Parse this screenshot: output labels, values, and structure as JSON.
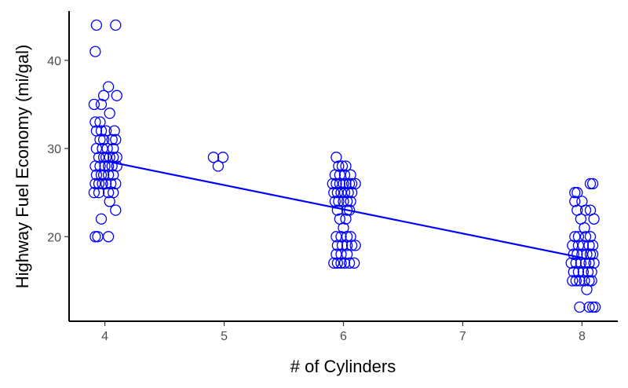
{
  "chart_data": {
    "type": "scatter",
    "title": "",
    "xlabel": "# of Cylinders",
    "ylabel": "Highway Fuel Economy (mi/gal)",
    "xlim": [
      3.7,
      8.3
    ],
    "ylim": [
      10.4,
      45.6
    ],
    "x_ticks": [
      4,
      5,
      6,
      7,
      8
    ],
    "y_ticks": [
      20,
      30,
      40
    ],
    "grid": false,
    "legend": "none",
    "point_color": "#0000ff",
    "line_color": "#0000ff",
    "points": [
      [
        3.93,
        44
      ],
      [
        4.09,
        44
      ],
      [
        3.92,
        41
      ],
      [
        4.03,
        37
      ],
      [
        3.99,
        36
      ],
      [
        4.1,
        36
      ],
      [
        3.91,
        35
      ],
      [
        3.97,
        35
      ],
      [
        4.04,
        34
      ],
      [
        3.92,
        33
      ],
      [
        3.96,
        33
      ],
      [
        3.93,
        32
      ],
      [
        3.97,
        32
      ],
      [
        4.01,
        32
      ],
      [
        4.08,
        32
      ],
      [
        3.96,
        31
      ],
      [
        3.99,
        31
      ],
      [
        4.06,
        31
      ],
      [
        4.09,
        31
      ],
      [
        3.93,
        30
      ],
      [
        3.98,
        30
      ],
      [
        4.02,
        30
      ],
      [
        4.07,
        30
      ],
      [
        3.95,
        29
      ],
      [
        3.99,
        29
      ],
      [
        4.01,
        29
      ],
      [
        4.04,
        29
      ],
      [
        4.07,
        29
      ],
      [
        4.1,
        29
      ],
      [
        3.92,
        28
      ],
      [
        3.96,
        28
      ],
      [
        4.0,
        28
      ],
      [
        4.03,
        28
      ],
      [
        4.06,
        28
      ],
      [
        4.1,
        28
      ],
      [
        3.93,
        27
      ],
      [
        3.97,
        27
      ],
      [
        3.99,
        27
      ],
      [
        4.03,
        27
      ],
      [
        4.07,
        27
      ],
      [
        3.92,
        26
      ],
      [
        3.95,
        26
      ],
      [
        3.98,
        26
      ],
      [
        4.01,
        26
      ],
      [
        4.05,
        26
      ],
      [
        4.09,
        26
      ],
      [
        3.91,
        25
      ],
      [
        3.95,
        25
      ],
      [
        4.03,
        25
      ],
      [
        4.07,
        25
      ],
      [
        4.04,
        24
      ],
      [
        4.09,
        23
      ],
      [
        3.97,
        22
      ],
      [
        3.92,
        20
      ],
      [
        3.94,
        20
      ],
      [
        4.03,
        20
      ],
      [
        4.91,
        29
      ],
      [
        4.99,
        29
      ],
      [
        4.95,
        28
      ],
      [
        5.94,
        29
      ],
      [
        5.96,
        28
      ],
      [
        5.99,
        28
      ],
      [
        6.02,
        28
      ],
      [
        5.93,
        27
      ],
      [
        5.97,
        27
      ],
      [
        6.01,
        27
      ],
      [
        6.06,
        27
      ],
      [
        5.91,
        26
      ],
      [
        5.94,
        26
      ],
      [
        5.97,
        26
      ],
      [
        6.0,
        26
      ],
      [
        6.02,
        26
      ],
      [
        6.05,
        26
      ],
      [
        6.07,
        26
      ],
      [
        6.1,
        26
      ],
      [
        5.92,
        25
      ],
      [
        5.95,
        25
      ],
      [
        5.98,
        25
      ],
      [
        6.01,
        25
      ],
      [
        6.04,
        25
      ],
      [
        6.07,
        25
      ],
      [
        5.93,
        24
      ],
      [
        5.96,
        24
      ],
      [
        6.0,
        24
      ],
      [
        6.03,
        24
      ],
      [
        6.06,
        24
      ],
      [
        5.95,
        23
      ],
      [
        6.03,
        23
      ],
      [
        6.05,
        23
      ],
      [
        5.97,
        22
      ],
      [
        6.02,
        22
      ],
      [
        6.0,
        21
      ],
      [
        5.98,
        20
      ],
      [
        5.94,
        20
      ],
      [
        6.03,
        20
      ],
      [
        6.06,
        20
      ],
      [
        5.95,
        19
      ],
      [
        5.99,
        19
      ],
      [
        6.03,
        19
      ],
      [
        6.07,
        19
      ],
      [
        6.1,
        19
      ],
      [
        5.94,
        18
      ],
      [
        5.98,
        18
      ],
      [
        6.03,
        18
      ],
      [
        5.92,
        17
      ],
      [
        5.95,
        17
      ],
      [
        5.98,
        17
      ],
      [
        6.01,
        17
      ],
      [
        6.05,
        17
      ],
      [
        6.09,
        17
      ],
      [
        7.94,
        25
      ],
      [
        7.96,
        25
      ],
      [
        8.07,
        26
      ],
      [
        8.09,
        26
      ],
      [
        7.94,
        24
      ],
      [
        8.0,
        24
      ],
      [
        7.96,
        23
      ],
      [
        8.03,
        23
      ],
      [
        8.07,
        23
      ],
      [
        7.99,
        22
      ],
      [
        8.1,
        22
      ],
      [
        8.02,
        21
      ],
      [
        7.94,
        20
      ],
      [
        7.97,
        20
      ],
      [
        8.03,
        20
      ],
      [
        8.07,
        20
      ],
      [
        7.92,
        19
      ],
      [
        7.97,
        19
      ],
      [
        8.01,
        19
      ],
      [
        8.06,
        19
      ],
      [
        8.09,
        19
      ],
      [
        7.93,
        18
      ],
      [
        7.96,
        18
      ],
      [
        8.0,
        18
      ],
      [
        8.04,
        18
      ],
      [
        8.07,
        18
      ],
      [
        8.09,
        18
      ],
      [
        7.91,
        17
      ],
      [
        7.95,
        17
      ],
      [
        7.99,
        17
      ],
      [
        8.03,
        17
      ],
      [
        8.06,
        17
      ],
      [
        8.1,
        17
      ],
      [
        7.93,
        16
      ],
      [
        7.97,
        16
      ],
      [
        8.01,
        16
      ],
      [
        8.05,
        16
      ],
      [
        8.08,
        16
      ],
      [
        7.92,
        15
      ],
      [
        7.95,
        15
      ],
      [
        7.98,
        15
      ],
      [
        8.02,
        15
      ],
      [
        8.06,
        15
      ],
      [
        8.08,
        15
      ],
      [
        8.04,
        14
      ],
      [
        7.98,
        12
      ],
      [
        8.06,
        12
      ],
      [
        8.09,
        12
      ],
      [
        8.11,
        12
      ]
    ],
    "trend_line": [
      [
        4,
        28.6
      ],
      [
        8,
        17.6
      ]
    ]
  }
}
